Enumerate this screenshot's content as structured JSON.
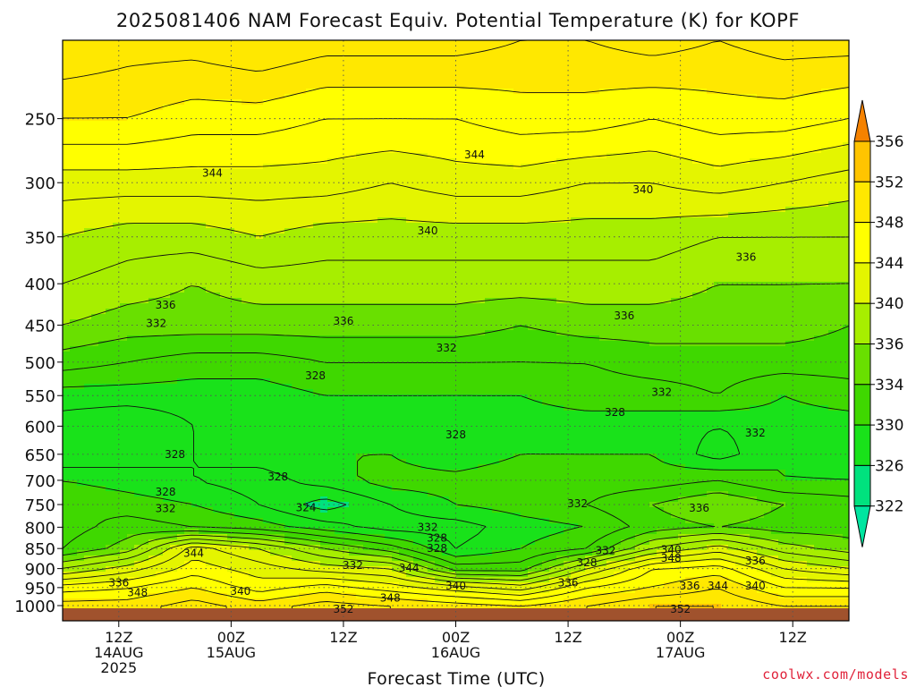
{
  "chart_data": {
    "type": "heatmap",
    "title": "2025081406 NAM Forecast Equiv. Potential Temperature (K) for KOPF",
    "xlabel": "Forecast Time (UTC)",
    "ylabel": "",
    "credit": "coolwx.com/models",
    "y_axis": {
      "scale": "log-pressure",
      "ylim": [
        1000,
        200
      ],
      "ticks": [
        250,
        300,
        350,
        400,
        450,
        500,
        550,
        600,
        650,
        700,
        750,
        800,
        850,
        900,
        950,
        1000
      ],
      "tick_labels": [
        "250",
        "300",
        "350",
        "400",
        "450",
        "500",
        "550",
        "600",
        "650",
        "700",
        "750",
        "800",
        "850",
        "900",
        "950",
        "1000"
      ]
    },
    "x_axis": {
      "xlim": [
        0,
        84
      ],
      "ticks": [
        {
          "hour": 6,
          "lines": [
            "12Z",
            "14AUG",
            "2025"
          ]
        },
        {
          "hour": 18,
          "lines": [
            "00Z",
            "15AUG"
          ]
        },
        {
          "hour": 30,
          "lines": [
            "12Z"
          ]
        },
        {
          "hour": 42,
          "lines": [
            "00Z",
            "16AUG"
          ]
        },
        {
          "hour": 54,
          "lines": [
            "12Z"
          ]
        },
        {
          "hour": 66,
          "lines": [
            "00Z",
            "17AUG"
          ]
        },
        {
          "hour": 78,
          "lines": [
            "12Z"
          ]
        }
      ]
    },
    "grid": true,
    "colorbar": {
      "position": "right",
      "levels": [
        322,
        326,
        330,
        334,
        336,
        340,
        344,
        348,
        352,
        356
      ],
      "colors": [
        "#00e27e",
        "#19e21a",
        "#3fd800",
        "#69e000",
        "#a7ee00",
        "#e4f500",
        "#ffff00",
        "#ffe800",
        "#ffc400",
        "#ff9d00"
      ],
      "under_color": "#00e5a0",
      "over_color": "#f58200"
    },
    "contour_labels": [
      {
        "hour": 16,
        "hpa": 292,
        "value": "344"
      },
      {
        "hour": 44,
        "hpa": 277,
        "value": "344"
      },
      {
        "hour": 39,
        "hpa": 344,
        "value": "340"
      },
      {
        "hour": 62,
        "hpa": 306,
        "value": "340"
      },
      {
        "hour": 73,
        "hpa": 371,
        "value": "336"
      },
      {
        "hour": 11,
        "hpa": 425,
        "value": "336"
      },
      {
        "hour": 30,
        "hpa": 445,
        "value": "336"
      },
      {
        "hour": 60,
        "hpa": 438,
        "value": "336"
      },
      {
        "hour": 10,
        "hpa": 448,
        "value": "332"
      },
      {
        "hour": 41,
        "hpa": 480,
        "value": "332"
      },
      {
        "hour": 64,
        "hpa": 545,
        "value": "332"
      },
      {
        "hour": 27,
        "hpa": 520,
        "value": "328"
      },
      {
        "hour": 42,
        "hpa": 615,
        "value": "328"
      },
      {
        "hour": 59,
        "hpa": 577,
        "value": "328"
      },
      {
        "hour": 74,
        "hpa": 612,
        "value": "332"
      },
      {
        "hour": 12,
        "hpa": 650,
        "value": "328"
      },
      {
        "hour": 23,
        "hpa": 693,
        "value": "328"
      },
      {
        "hour": 11,
        "hpa": 724,
        "value": "328"
      },
      {
        "hour": 11,
        "hpa": 759,
        "value": "332"
      },
      {
        "hour": 26,
        "hpa": 757,
        "value": "324"
      },
      {
        "hour": 55,
        "hpa": 748,
        "value": "332"
      },
      {
        "hour": 68,
        "hpa": 758,
        "value": "336"
      },
      {
        "hour": 39,
        "hpa": 800,
        "value": "332"
      },
      {
        "hour": 40,
        "hpa": 825,
        "value": "328"
      },
      {
        "hour": 40,
        "hpa": 850,
        "value": "328"
      },
      {
        "hour": 14,
        "hpa": 862,
        "value": "344"
      },
      {
        "hour": 58,
        "hpa": 855,
        "value": "332"
      },
      {
        "hour": 65,
        "hpa": 853,
        "value": "340"
      },
      {
        "hour": 65,
        "hpa": 874,
        "value": "348"
      },
      {
        "hour": 74,
        "hpa": 880,
        "value": "336"
      },
      {
        "hour": 56,
        "hpa": 885,
        "value": "328"
      },
      {
        "hour": 31,
        "hpa": 892,
        "value": "332"
      },
      {
        "hour": 37,
        "hpa": 898,
        "value": "344"
      },
      {
        "hour": 6,
        "hpa": 937,
        "value": "336"
      },
      {
        "hour": 8,
        "hpa": 964,
        "value": "348"
      },
      {
        "hour": 19,
        "hpa": 960,
        "value": "340"
      },
      {
        "hour": 42,
        "hpa": 946,
        "value": "340"
      },
      {
        "hour": 54,
        "hpa": 937,
        "value": "336"
      },
      {
        "hour": 67,
        "hpa": 946,
        "value": "336"
      },
      {
        "hour": 70,
        "hpa": 946,
        "value": "344"
      },
      {
        "hour": 74,
        "hpa": 946,
        "value": "340"
      },
      {
        "hour": 35,
        "hpa": 978,
        "value": "348"
      },
      {
        "hour": 30,
        "hpa": 1010,
        "value": "352"
      },
      {
        "hour": 66,
        "hpa": 1010,
        "value": "352"
      }
    ],
    "profiles": [
      {
        "hpa": 200,
        "values": [
          352,
          351,
          351,
          352,
          351,
          351,
          351,
          350,
          350,
          351,
          350,
          351,
          351
        ]
      },
      {
        "hpa": 250,
        "values": [
          348,
          348,
          347,
          347,
          346,
          346,
          346,
          347,
          347,
          346,
          347,
          347,
          346
        ]
      },
      {
        "hpa": 300,
        "values": [
          343,
          343,
          343,
          343,
          343,
          342,
          343,
          343,
          342,
          342,
          343,
          342,
          341
        ]
      },
      {
        "hpa": 350,
        "values": [
          340,
          339,
          339,
          340,
          339,
          339,
          339,
          339,
          339,
          339,
          338,
          338,
          338
        ]
      },
      {
        "hpa": 400,
        "values": [
          338,
          337,
          336,
          337,
          337,
          337,
          337,
          337,
          337,
          337,
          336,
          336,
          336
        ]
      },
      {
        "hpa": 450,
        "values": [
          336,
          335,
          335,
          335,
          335,
          335,
          335,
          334,
          335,
          335,
          335,
          335,
          334
        ]
      },
      {
        "hpa": 500,
        "values": [
          333,
          332,
          331,
          331,
          332,
          332,
          332,
          332,
          332,
          333,
          333,
          333,
          333
        ]
      },
      {
        "hpa": 550,
        "values": [
          329,
          329,
          329,
          329,
          330,
          330,
          330,
          330,
          331,
          331,
          332,
          330,
          331
        ]
      },
      {
        "hpa": 600,
        "values": [
          327,
          326,
          328,
          330,
          328,
          329,
          328,
          329,
          329,
          329,
          328,
          329,
          329
        ]
      },
      {
        "hpa": 650,
        "values": [
          326,
          327,
          328,
          329,
          330,
          330,
          328,
          330,
          330,
          330,
          327,
          330,
          328
        ]
      },
      {
        "hpa": 700,
        "values": [
          330,
          329,
          328,
          327,
          329,
          331,
          331,
          332,
          331,
          331,
          332,
          330,
          330
        ]
      },
      {
        "hpa": 750,
        "values": [
          332,
          331,
          330,
          328,
          325,
          328,
          330,
          331,
          332,
          334,
          336,
          334,
          333
        ]
      },
      {
        "hpa": 800,
        "values": [
          331,
          333,
          332,
          331,
          329,
          327,
          327,
          329,
          330,
          333,
          334,
          333,
          333
        ]
      },
      {
        "hpa": 850,
        "values": [
          332,
          335,
          343,
          340,
          336,
          333,
          328,
          330,
          332,
          338,
          341,
          337,
          335
        ]
      },
      {
        "hpa": 900,
        "values": [
          338,
          341,
          345,
          343,
          341,
          340,
          333,
          333,
          340,
          346,
          347,
          342,
          340
        ]
      },
      {
        "hpa": 950,
        "values": [
          345,
          346,
          348,
          345,
          347,
          345,
          343,
          341,
          346,
          348,
          350,
          346,
          346
        ]
      },
      {
        "hpa": 1000,
        "values": [
          349,
          349,
          351,
          349,
          351,
          350,
          349,
          348,
          350,
          352,
          352,
          350,
          350
        ]
      }
    ],
    "profile_hours": [
      0,
      7,
      14,
      21,
      28,
      35,
      42,
      49,
      56,
      63,
      70,
      77,
      84
    ]
  }
}
